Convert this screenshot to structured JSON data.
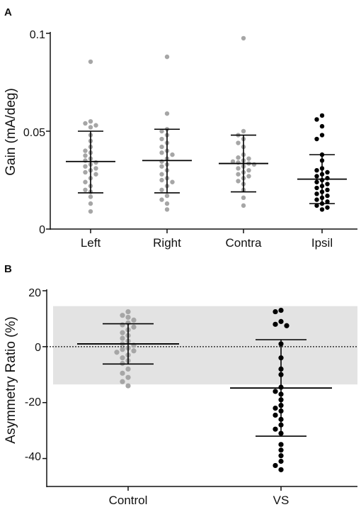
{
  "chart_data": [
    {
      "panel": "A",
      "type": "scatter",
      "title": "",
      "xlabel": "",
      "ylabel": "Gain (mA/deg)",
      "ylim": [
        0,
        0.1
      ],
      "yticks": [
        0,
        0.05,
        0.1
      ],
      "ytick_labels": [
        "0",
        "0.05",
        "0.1"
      ],
      "categories": [
        "Left",
        "Right",
        "Contra",
        "Ipsil"
      ],
      "series": [
        {
          "category": "Left",
          "color": "#a6a6a6",
          "mean": 0.0345,
          "sd_upper": 0.05,
          "sd_lower": 0.0185,
          "points": [
            0.0855,
            0.055,
            0.054,
            0.053,
            0.052,
            0.048,
            0.045,
            0.042,
            0.04,
            0.039,
            0.0375,
            0.036,
            0.035,
            0.034,
            0.033,
            0.032,
            0.031,
            0.03,
            0.029,
            0.028,
            0.026,
            0.024,
            0.022,
            0.02,
            0.019,
            0.0165,
            0.013,
            0.009
          ]
        },
        {
          "category": "Right",
          "color": "#a6a6a6",
          "mean": 0.035,
          "sd_upper": 0.051,
          "sd_lower": 0.0185,
          "points": [
            0.088,
            0.059,
            0.051,
            0.05,
            0.048,
            0.046,
            0.044,
            0.042,
            0.04,
            0.039,
            0.038,
            0.036,
            0.0345,
            0.033,
            0.032,
            0.03,
            0.028,
            0.026,
            0.025,
            0.024,
            0.022,
            0.02,
            0.017,
            0.015,
            0.013,
            0.01
          ]
        },
        {
          "category": "Contra",
          "color": "#a6a6a6",
          "mean": 0.0335,
          "sd_upper": 0.048,
          "sd_lower": 0.019,
          "points": [
            0.0975,
            0.05,
            0.048,
            0.046,
            0.044,
            0.042,
            0.038,
            0.0365,
            0.036,
            0.035,
            0.0345,
            0.034,
            0.0335,
            0.033,
            0.032,
            0.031,
            0.03,
            0.029,
            0.028,
            0.027,
            0.026,
            0.0245,
            0.023,
            0.02,
            0.016,
            0.012
          ]
        },
        {
          "category": "Ipsil",
          "color": "#000000",
          "mean": 0.0255,
          "sd_upper": 0.038,
          "sd_lower": 0.013,
          "points": [
            0.058,
            0.056,
            0.0525,
            0.048,
            0.046,
            0.038,
            0.035,
            0.031,
            0.03,
            0.029,
            0.028,
            0.027,
            0.026,
            0.025,
            0.024,
            0.023,
            0.022,
            0.021,
            0.02,
            0.019,
            0.018,
            0.017,
            0.016,
            0.015,
            0.014,
            0.013,
            0.012,
            0.011,
            0.01
          ]
        }
      ]
    },
    {
      "panel": "B",
      "type": "scatter",
      "title": "",
      "xlabel": "",
      "ylabel": "Asymmetry Ratio (%)",
      "ylim": [
        -50,
        20
      ],
      "yticks": [
        -40,
        -20,
        0,
        20
      ],
      "ytick_labels": [
        "-40",
        "-20",
        "0",
        "20"
      ],
      "shaded_band": [
        -13.5,
        14.5
      ],
      "reference_line": 0,
      "categories": [
        "Control",
        "VS"
      ],
      "series": [
        {
          "category": "Control",
          "color": "#a6a6a6",
          "mean": 1.0,
          "sd_upper": 8.2,
          "sd_lower": -6.2,
          "points": [
            12.5,
            11.2,
            10.5,
            9.5,
            8.5,
            7.8,
            7.0,
            6.0,
            5.0,
            4.0,
            3.0,
            2.0,
            1.0,
            0.5,
            -0.5,
            -1.0,
            -1.5,
            -2.0,
            -3.0,
            -4.0,
            -5.0,
            -6.0,
            -8.0,
            -9.5,
            -11.0,
            -12.5,
            -14.0
          ]
        },
        {
          "category": "VS",
          "color": "#000000",
          "mean": -14.8,
          "sd_upper": 2.5,
          "sd_lower": -32.0,
          "points": [
            13.0,
            12.5,
            9.0,
            8.0,
            7.5,
            1.0,
            -4.0,
            -8.0,
            -10.0,
            -14.5,
            -16.0,
            -17.0,
            -19.0,
            -21.0,
            -22.0,
            -23.0,
            -24.5,
            -26.0,
            -28.0,
            -29.5,
            -31.0,
            -35.0,
            -37.0,
            -39.0,
            -41.0,
            -42.5,
            -44.0
          ]
        }
      ]
    }
  ]
}
